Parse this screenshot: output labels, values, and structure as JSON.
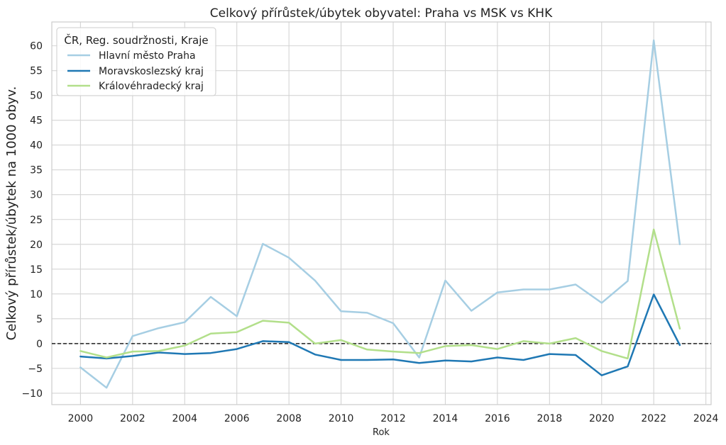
{
  "chart_data": {
    "type": "line",
    "title": "Celkový přírůstek/úbytek obyvatel: Praha vs MSK vs KHK",
    "xlabel": "Rok",
    "ylabel": "Celkový přírůstek/úbytek na 1000 obyv.",
    "xlim": [
      1998.9,
      2024.2
    ],
    "ylim": [
      -12.3,
      64.8
    ],
    "xticks": [
      2000,
      2002,
      2004,
      2006,
      2008,
      2010,
      2012,
      2014,
      2016,
      2018,
      2020,
      2022,
      2024
    ],
    "yticks": [
      -10,
      -5,
      0,
      5,
      10,
      15,
      20,
      25,
      30,
      35,
      40,
      45,
      50,
      55,
      60
    ],
    "grid": true,
    "legend": {
      "title": "ČR, Reg. soudržnosti, Kraje",
      "placement": "top-left"
    },
    "reference_line": {
      "y": 0,
      "style": "dashed",
      "color": "#222222"
    },
    "x": [
      2000,
      2001,
      2002,
      2003,
      2004,
      2005,
      2006,
      2007,
      2008,
      2009,
      2010,
      2011,
      2012,
      2013,
      2014,
      2015,
      2016,
      2017,
      2018,
      2019,
      2020,
      2021,
      2022,
      2023
    ],
    "series": [
      {
        "name": "Hlavní město Praha",
        "color": "#a6cee3",
        "values": [
          -4.8,
          -8.9,
          1.5,
          3.1,
          4.3,
          9.4,
          5.5,
          20.1,
          17.3,
          12.7,
          6.5,
          6.2,
          4.1,
          -2.8,
          12.7,
          6.6,
          10.3,
          10.9,
          10.9,
          11.9,
          8.2,
          12.6,
          61.1,
          20.0
        ]
      },
      {
        "name": "Moravskoslezský kraj",
        "color": "#1f78b4",
        "values": [
          -2.6,
          -3.0,
          -2.5,
          -1.8,
          -2.1,
          -1.9,
          -1.1,
          0.5,
          0.3,
          -2.2,
          -3.3,
          -3.3,
          -3.2,
          -3.9,
          -3.4,
          -3.6,
          -2.8,
          -3.3,
          -2.1,
          -2.3,
          -6.4,
          -4.6,
          9.9,
          -0.3
        ]
      },
      {
        "name": "Královéhradecký kraj",
        "color": "#b2df8a",
        "values": [
          -1.5,
          -2.8,
          -1.6,
          -1.5,
          -0.4,
          2.0,
          2.3,
          4.6,
          4.2,
          0.0,
          0.7,
          -1.2,
          -1.6,
          -1.9,
          -0.5,
          -0.3,
          -1.1,
          0.5,
          0.0,
          1.1,
          -1.5,
          -3.0,
          23.0,
          3.0
        ]
      }
    ]
  }
}
